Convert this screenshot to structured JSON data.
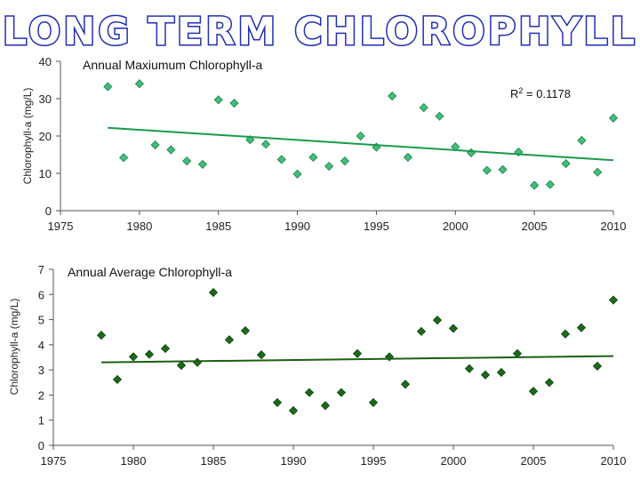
{
  "slide": {
    "title": "LONG TERM CHLOROPHYLL",
    "title_fill": "#ffffff",
    "title_stroke": "#1f2db5"
  },
  "chart_data": [
    {
      "type": "scatter",
      "title": "Annual Maxiumum Chlorophyll-a",
      "xlabel": "",
      "ylabel": "Chlorophyll-a (mg/L)",
      "xlim": [
        1975,
        2010
      ],
      "ylim": [
        0,
        40
      ],
      "xticks": [
        1975,
        1980,
        1985,
        1990,
        1995,
        2000,
        2005,
        2010
      ],
      "yticks": [
        0,
        10,
        20,
        30,
        40
      ],
      "marker_color": "#3fc07a",
      "marker_edge": "#1e7a46",
      "trend_color": "#1a9a4a",
      "trendline": {
        "x": [
          1978,
          2010
        ],
        "y": [
          22.2,
          13.5
        ]
      },
      "annotation": {
        "text": "R² = 0.1178",
        "label": "R",
        "sup": "2",
        "rest": " = 0.1178"
      },
      "series": [
        {
          "name": "Annual Maximum",
          "x": [
            1978,
            1979,
            1980,
            1981,
            1982,
            1983,
            1984,
            1985,
            1986,
            1987,
            1988,
            1989,
            1990,
            1991,
            1992,
            1993,
            1994,
            1995,
            1996,
            1997,
            1998,
            1999,
            2000,
            2001,
            2002,
            2003,
            2004,
            2005,
            2006,
            2007,
            2008,
            2009,
            2010
          ],
          "y": [
            33.2,
            14.2,
            34.0,
            17.6,
            16.3,
            13.3,
            12.4,
            29.7,
            28.8,
            19.0,
            17.8,
            13.7,
            9.8,
            14.3,
            11.9,
            13.3,
            20.0,
            17.0,
            30.7,
            14.3,
            27.6,
            25.3,
            17.1,
            15.5,
            10.8,
            11.0,
            15.7,
            6.8,
            7.0,
            12.6,
            18.8,
            10.3,
            24.8
          ]
        }
      ]
    },
    {
      "type": "scatter",
      "title": "Annual Average Chlorophyll-a",
      "xlabel": "",
      "ylabel": "Chlorophyll-a (mg/L)",
      "xlim": [
        1975,
        2010
      ],
      "ylim": [
        0,
        7
      ],
      "xticks": [
        1975,
        1980,
        1985,
        1990,
        1995,
        2000,
        2005,
        2010
      ],
      "yticks": [
        0,
        1,
        2,
        3,
        4,
        5,
        6,
        7
      ],
      "marker_color": "#1a6b1a",
      "marker_edge": "#0b3d0b",
      "trend_color": "#1e5e12",
      "trendline": {
        "x": [
          1978,
          2010
        ],
        "y": [
          3.3,
          3.55
        ]
      },
      "series": [
        {
          "name": "Annual Average",
          "x": [
            1978,
            1979,
            1980,
            1981,
            1982,
            1983,
            1984,
            1985,
            1986,
            1987,
            1988,
            1989,
            1990,
            1991,
            1992,
            1993,
            1994,
            1995,
            1996,
            1997,
            1998,
            1999,
            2000,
            2001,
            2002,
            2003,
            2004,
            2005,
            2006,
            2007,
            2008,
            2009,
            2010
          ],
          "y": [
            4.38,
            2.62,
            3.52,
            3.62,
            3.85,
            3.18,
            3.3,
            6.08,
            4.2,
            4.56,
            3.6,
            1.7,
            1.38,
            2.1,
            1.58,
            2.1,
            3.65,
            1.7,
            3.52,
            2.43,
            4.53,
            4.98,
            4.65,
            3.05,
            2.8,
            2.9,
            3.65,
            2.15,
            2.5,
            4.43,
            4.68,
            3.15,
            5.78
          ]
        }
      ]
    }
  ]
}
